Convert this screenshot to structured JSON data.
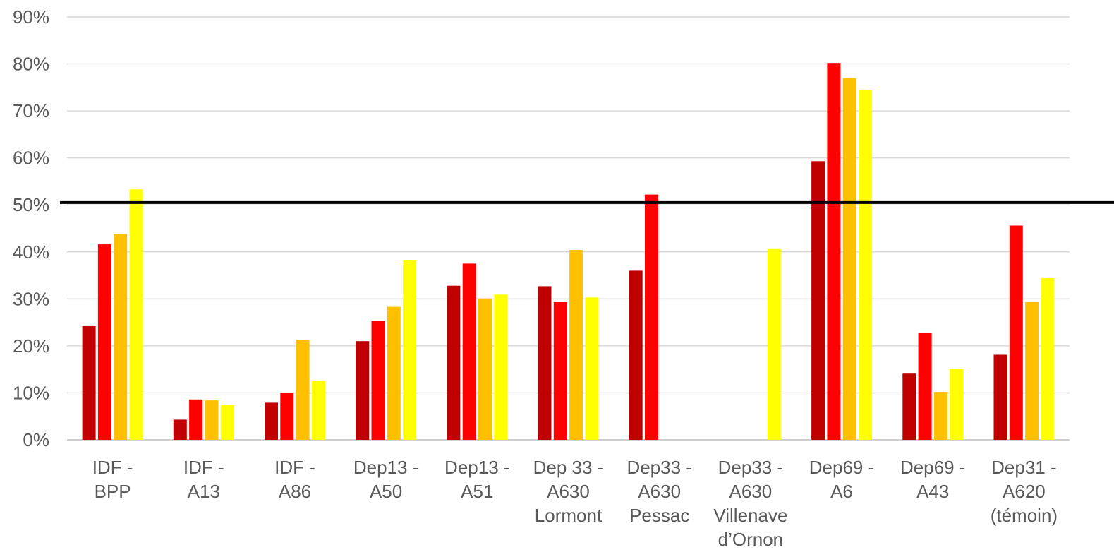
{
  "chart_data": {
    "type": "bar",
    "title": "",
    "xlabel": "",
    "ylabel": "",
    "ylim": [
      0,
      90
    ],
    "y_ticks": [
      "0%",
      "10%",
      "20%",
      "30%",
      "40%",
      "50%",
      "60%",
      "70%",
      "80%",
      "90%"
    ],
    "y_tick_values": [
      0,
      10,
      20,
      30,
      40,
      50,
      60,
      70,
      80,
      90
    ],
    "grid": true,
    "legend": "none",
    "reference_line": {
      "value": 50.5,
      "color": "#000000"
    },
    "categories": [
      [
        "IDF -",
        "BPP"
      ],
      [
        "IDF -",
        "A13"
      ],
      [
        "IDF -",
        "A86"
      ],
      [
        "Dep13 -",
        "A50"
      ],
      [
        "Dep13 -",
        "A51"
      ],
      [
        "Dep 33 -",
        "A630",
        "Lormont"
      ],
      [
        "Dep33 -",
        "A630",
        "Pessac"
      ],
      [
        "Dep33 -",
        "A630",
        "Villenave",
        "d’Ornon"
      ],
      [
        "Dep69 -",
        "A6"
      ],
      [
        "Dep69 -",
        "A43"
      ],
      [
        "Dep31 -",
        "A620",
        "(témoin)"
      ]
    ],
    "series": [
      {
        "color": "#C00000",
        "values": [
          24.2,
          4.3,
          7.9,
          21.0,
          32.8,
          32.7,
          36.0,
          null,
          59.3,
          14.1,
          18.1
        ]
      },
      {
        "color": "#FF0000",
        "values": [
          41.6,
          8.6,
          10.0,
          25.3,
          37.5,
          29.3,
          52.2,
          null,
          80.2,
          22.7,
          45.6
        ]
      },
      {
        "color": "#FFC000",
        "values": [
          43.8,
          8.4,
          21.3,
          28.3,
          30.1,
          40.4,
          null,
          null,
          77.0,
          10.2,
          29.3
        ]
      },
      {
        "color": "#FFFF00",
        "values": [
          53.3,
          7.4,
          12.6,
          38.2,
          30.9,
          30.3,
          null,
          40.6,
          74.5,
          15.1,
          34.4
        ]
      }
    ]
  }
}
